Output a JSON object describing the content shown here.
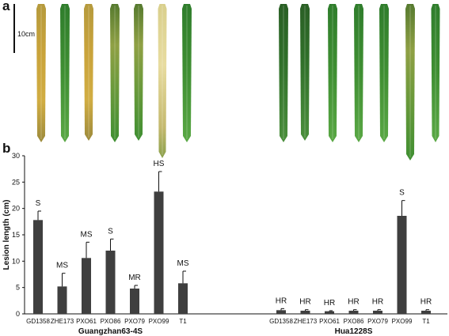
{
  "panel_a": {
    "label": "a",
    "scale_label": "10cm"
  },
  "panel_b": {
    "label": "b"
  },
  "colors": {
    "bar": "#3f3f3f",
    "leaf_dry": "#c9a33a",
    "leaf_green": "#3f8f32",
    "leaf_dark_green": "#2f6f29"
  },
  "chart_data": {
    "type": "bar",
    "ylabel": "Lesion length (cm)",
    "ylim": [
      0,
      30
    ],
    "yticks": [
      0,
      5,
      10,
      15,
      20,
      25,
      30
    ],
    "grid": false,
    "groups": [
      {
        "name": "Guangzhan63-4S",
        "categories": [
          "GD1358",
          "ZHE173",
          "PXO61",
          "PXO86",
          "PXO79",
          "PXO99",
          "T1"
        ],
        "values": [
          17.8,
          5.2,
          10.6,
          12.0,
          4.8,
          23.2,
          5.8
        ],
        "errors": [
          1.7,
          2.5,
          3.0,
          2.2,
          0.6,
          3.8,
          2.3
        ],
        "annotations": [
          "S",
          "MS",
          "MS",
          "S",
          "MR",
          "HS",
          "MS"
        ]
      },
      {
        "name": "Hua1228S",
        "categories": [
          "GD1358",
          "ZHE173",
          "PXO61",
          "PXO86",
          "PXO79",
          "PXO99",
          "T1"
        ],
        "values": [
          0.7,
          0.6,
          0.5,
          0.6,
          0.6,
          18.6,
          0.6
        ],
        "errors": [
          0.3,
          0.2,
          0.1,
          0.2,
          0.2,
          2.9,
          0.2
        ],
        "annotations": [
          "HR",
          "HR",
          "HR",
          "HR",
          "HR",
          "S",
          "HR"
        ]
      }
    ]
  }
}
